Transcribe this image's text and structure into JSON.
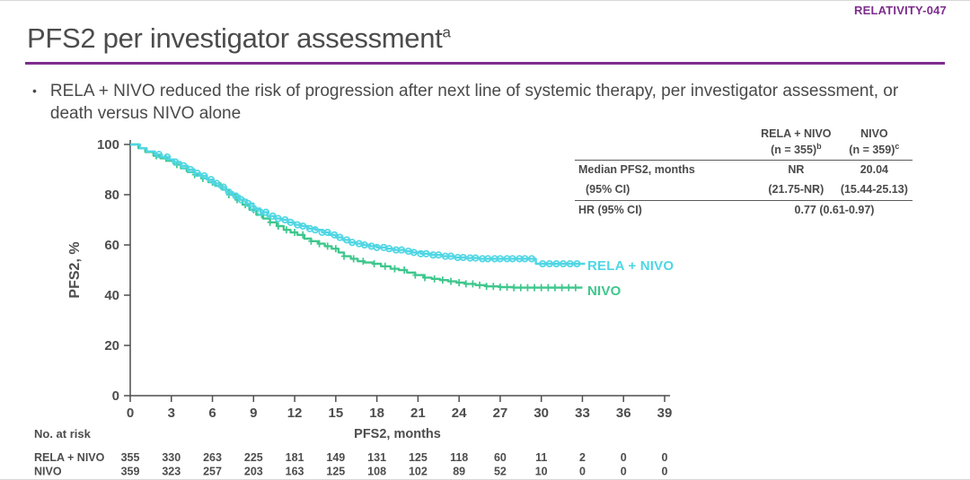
{
  "slide": {
    "tag": "RELATIVITY-047",
    "title": "PFS2 per investigator assessment",
    "title_sup": "a",
    "bullet": "RELA + NIVO reduced the risk of progression after next line of systemic therapy, per investigator assessment, or death versus NIVO alone",
    "bullet_marker": "•"
  },
  "colors": {
    "accent_purple": "#7d2d8d",
    "rela_nivo_cyan": "#4fd6e4",
    "nivo_green": "#3ec78d",
    "text_gray": "#4a4a4a"
  },
  "stats_table": {
    "col_headers": [
      {
        "name": "RELA + NIVO",
        "n": "(n = 355)",
        "sup": "b"
      },
      {
        "name": "NIVO",
        "n": "(n = 359)",
        "sup": "c"
      }
    ],
    "rows": [
      {
        "label": "Median PFS2, months",
        "rela_nivo": "NR",
        "nivo": "20.04"
      },
      {
        "label": "(95% CI)",
        "rela_nivo": "(21.75-NR)",
        "nivo": "(15.44-25.13)"
      },
      {
        "label": "HR (95% CI)",
        "combined": "0.77 (0.61-0.97)"
      }
    ]
  },
  "chart_data": {
    "type": "line",
    "subtype": "kaplan-meier-step",
    "xlabel": "PFS2, months",
    "ylabel": "PFS2, %",
    "xlim": [
      0,
      39
    ],
    "ylim": [
      0,
      100
    ],
    "xticks": [
      0,
      3,
      6,
      9,
      12,
      15,
      18,
      21,
      24,
      27,
      30,
      33,
      36,
      39
    ],
    "yticks": [
      0,
      20,
      40,
      60,
      80,
      100
    ],
    "grid": false,
    "legend_position": "end-of-curve",
    "series": [
      {
        "name": "NIVO",
        "color": "#3ec78d",
        "marker": "plus",
        "points": [
          [
            0,
            100
          ],
          [
            0.6,
            98.5
          ],
          [
            1.1,
            97
          ],
          [
            1.7,
            95.5
          ],
          [
            2.2,
            94.5
          ],
          [
            2.7,
            93.5
          ],
          [
            3.2,
            92
          ],
          [
            3.7,
            90.5
          ],
          [
            4.2,
            89
          ],
          [
            4.7,
            88
          ],
          [
            5.2,
            86.5
          ],
          [
            5.7,
            85
          ],
          [
            6.2,
            83.5
          ],
          [
            6.7,
            82
          ],
          [
            7.2,
            80
          ],
          [
            7.7,
            78
          ],
          [
            8.2,
            76
          ],
          [
            8.7,
            74
          ],
          [
            9.2,
            72
          ],
          [
            9.7,
            70.5
          ],
          [
            10.2,
            69
          ],
          [
            10.7,
            67.5
          ],
          [
            11.2,
            66
          ],
          [
            11.7,
            65
          ],
          [
            12.2,
            64
          ],
          [
            12.7,
            62.5
          ],
          [
            13.2,
            61.5
          ],
          [
            13.7,
            60.5
          ],
          [
            14.2,
            59.5
          ],
          [
            14.7,
            58.5
          ],
          [
            15.2,
            57
          ],
          [
            15.6,
            55.5
          ],
          [
            16.1,
            54.5
          ],
          [
            16.6,
            53.5
          ],
          [
            17.1,
            53
          ],
          [
            17.7,
            52.5
          ],
          [
            18.3,
            51.5
          ],
          [
            19,
            50.5
          ],
          [
            19.6,
            50
          ],
          [
            20.2,
            49
          ],
          [
            20.8,
            48
          ],
          [
            21.4,
            47
          ],
          [
            22,
            46.5
          ],
          [
            22.6,
            46
          ],
          [
            23.2,
            45.5
          ],
          [
            23.8,
            45
          ],
          [
            24.4,
            44.5
          ],
          [
            25.2,
            44
          ],
          [
            26,
            43.5
          ],
          [
            27,
            43.2
          ],
          [
            28,
            43
          ],
          [
            33,
            43
          ]
        ],
        "censor_times": [
          1.9,
          2.6,
          3.4,
          4.1,
          4.7,
          5.3,
          6,
          6.6,
          7.2,
          7.8,
          8.4,
          9,
          9.6,
          10.2,
          10.8,
          11.4,
          12,
          12.6,
          13.2,
          13.8,
          14.4,
          15,
          15.6,
          16.3,
          17,
          17.8,
          18.6,
          19.3,
          20,
          20.8,
          21.5,
          22.2,
          22.8,
          23.4,
          24,
          24.5,
          25,
          25.5,
          26,
          26.5,
          27,
          27.5,
          28,
          28.5,
          29,
          29.5,
          30,
          30.5,
          31,
          31.5,
          32,
          32.5
        ]
      },
      {
        "name": "RELA + NIVO",
        "color": "#4fd6e4",
        "marker": "circle",
        "points": [
          [
            0,
            100
          ],
          [
            0.7,
            98.5
          ],
          [
            1.2,
            97.2
          ],
          [
            1.8,
            96
          ],
          [
            2.3,
            95
          ],
          [
            2.8,
            94
          ],
          [
            3.2,
            93
          ],
          [
            3.7,
            91.5
          ],
          [
            4.2,
            90
          ],
          [
            4.7,
            88.5
          ],
          [
            5.1,
            87.5
          ],
          [
            5.6,
            86
          ],
          [
            6,
            84.5
          ],
          [
            6.5,
            83
          ],
          [
            7,
            81
          ],
          [
            7.5,
            79.5
          ],
          [
            8,
            78
          ],
          [
            8.5,
            76.5
          ],
          [
            9,
            74.5
          ],
          [
            9.5,
            73
          ],
          [
            10,
            71.5
          ],
          [
            10.5,
            70.5
          ],
          [
            11,
            70
          ],
          [
            11.5,
            69
          ],
          [
            12,
            68
          ],
          [
            12.5,
            67.5
          ],
          [
            13,
            66.5
          ],
          [
            13.5,
            66
          ],
          [
            14,
            65
          ],
          [
            14.5,
            64
          ],
          [
            15,
            63
          ],
          [
            15.5,
            62
          ],
          [
            16,
            61
          ],
          [
            16.5,
            60.5
          ],
          [
            17,
            60
          ],
          [
            17.5,
            59.5
          ],
          [
            18,
            59
          ],
          [
            18.7,
            58.5
          ],
          [
            19.3,
            58
          ],
          [
            20,
            57.5
          ],
          [
            20.6,
            57
          ],
          [
            21.2,
            56.5
          ],
          [
            22,
            56
          ],
          [
            22.8,
            55.5
          ],
          [
            23.6,
            55
          ],
          [
            24.5,
            54.8
          ],
          [
            25.5,
            54.5
          ],
          [
            29.6,
            52.5
          ],
          [
            33.2,
            52.5
          ]
        ],
        "censor_times": [
          2.1,
          2.7,
          3.3,
          3.9,
          4.4,
          4.9,
          5.4,
          5.9,
          6.3,
          6.8,
          7.2,
          7.7,
          8.1,
          8.6,
          9,
          9.5,
          9.9,
          10.4,
          10.8,
          11.3,
          11.7,
          12.2,
          12.6,
          13.1,
          13.5,
          14,
          14.4,
          14.9,
          15.3,
          15.8,
          16.2,
          16.7,
          17.1,
          17.6,
          18,
          18.5,
          18.9,
          19.4,
          19.8,
          20.3,
          20.7,
          21.2,
          21.6,
          22.1,
          22.5,
          23,
          23.4,
          23.9,
          24.3,
          24.8,
          25.2,
          25.7,
          26.1,
          26.6,
          27,
          27.5,
          27.9,
          28.4,
          28.8,
          29.3,
          30.1,
          30.6,
          31.1,
          31.6,
          32.1,
          32.6
        ]
      }
    ],
    "at_risk": {
      "label": "No. at risk",
      "rows": [
        {
          "name": "RELA + NIVO",
          "values": [
            355,
            330,
            263,
            225,
            181,
            149,
            131,
            125,
            118,
            60,
            11,
            2,
            0,
            0
          ]
        },
        {
          "name": "NIVO",
          "values": [
            359,
            323,
            257,
            203,
            163,
            125,
            108,
            102,
            89,
            52,
            10,
            0,
            0,
            0
          ]
        }
      ]
    }
  }
}
